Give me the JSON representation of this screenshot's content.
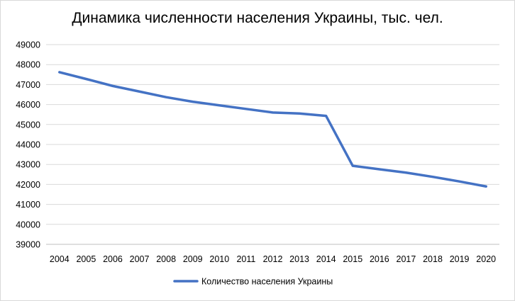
{
  "chart_data": {
    "type": "line",
    "title": "Динамика численности населения Украины, тыс. чел.",
    "xlabel": "",
    "ylabel": "",
    "x": [
      "2004",
      "2005",
      "2006",
      "2007",
      "2008",
      "2009",
      "2010",
      "2011",
      "2012",
      "2013",
      "2014",
      "2015",
      "2016",
      "2017",
      "2018",
      "2019",
      "2020"
    ],
    "y_ticks": [
      "39000",
      "40000",
      "41000",
      "42000",
      "43000",
      "44000",
      "45000",
      "46000",
      "47000",
      "48000",
      "49000"
    ],
    "ylim": [
      39000,
      49000
    ],
    "grid": true,
    "legend_position": "bottom",
    "series": [
      {
        "name": "Количество населения Украины",
        "color": "#4472c4",
        "values": [
          47620,
          47280,
          46930,
          46650,
          46370,
          46140,
          45960,
          45780,
          45600,
          45550,
          45430,
          42930,
          42760,
          42590,
          42380,
          42150,
          41900
        ]
      }
    ]
  }
}
